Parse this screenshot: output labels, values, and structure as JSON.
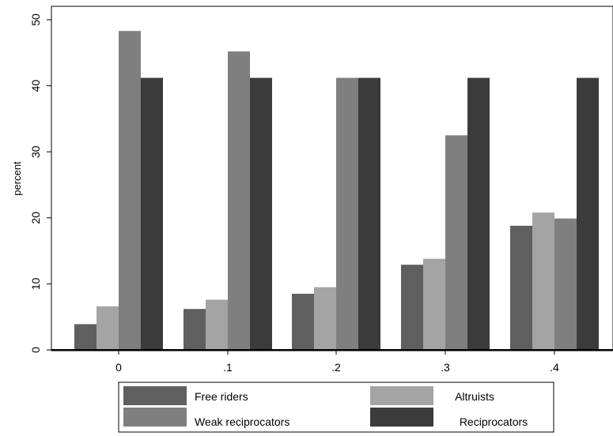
{
  "chart_data": {
    "type": "bar",
    "categories": [
      "0",
      ".1",
      ".2",
      ".3",
      ".4"
    ],
    "series": [
      {
        "name": "Free riders",
        "color": "#5f5f5f",
        "values": [
          3.9,
          6.2,
          8.5,
          12.9,
          18.8
        ]
      },
      {
        "name": "Altruists",
        "color": "#a4a4a4",
        "values": [
          6.6,
          7.6,
          9.5,
          13.8,
          20.8
        ]
      },
      {
        "name": "Weak reciprocators",
        "color": "#7f7f7f",
        "values": [
          48.3,
          45.2,
          41.2,
          32.5,
          19.9
        ]
      },
      {
        "name": "Reciprocators",
        "color": "#3b3b3b",
        "values": [
          41.2,
          41.2,
          41.2,
          41.2,
          41.2
        ]
      }
    ],
    "ylabel": "percent",
    "xlabel": "",
    "yticks": [
      0,
      10,
      20,
      30,
      40,
      50
    ],
    "ylim": [
      0,
      52
    ],
    "grid": false,
    "legend_position": "bottom"
  }
}
